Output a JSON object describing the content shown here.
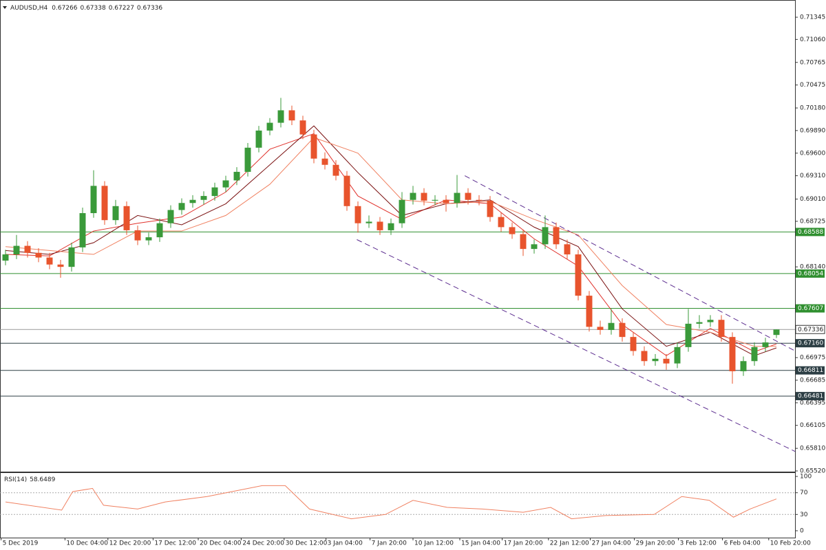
{
  "chart_data": [
    {
      "type": "candlestick",
      "title": "AUDUSD,H4",
      "xlim": [
        0,
        72
      ],
      "xticks": [
        {
          "value": 0.1,
          "label": "5 Dec 2019"
        },
        {
          "value": 5.9,
          "label": "10 Dec 04:00"
        },
        {
          "value": 9.8,
          "label": "12 Dec 20:00"
        },
        {
          "value": 13.9,
          "label": "17 Dec 12:00"
        },
        {
          "value": 18,
          "label": "20 Dec 04:00"
        },
        {
          "value": 21.9,
          "label": "24 Dec 20:00"
        },
        {
          "value": 25.8,
          "label": "30 Dec 12:00"
        },
        {
          "value": 29.6,
          "label": "3 Jan 04:00"
        },
        {
          "value": 33.6,
          "label": "7 Jan 20:00"
        },
        {
          "value": 37.5,
          "label": "10 Jan 12:00"
        },
        {
          "value": 41.75,
          "label": "15 Jan 04:00"
        },
        {
          "value": 45.6,
          "label": "17 Jan 20:00"
        },
        {
          "value": 49.8,
          "label": "22 Jan 12:00"
        },
        {
          "value": 53.6,
          "label": "27 Jan 04:00"
        },
        {
          "value": 57.6,
          "label": "29 Jan 20:00"
        },
        {
          "value": 61.6,
          "label": "3 Feb 12:00"
        },
        {
          "value": 65.6,
          "label": "6 Feb 04:00"
        },
        {
          "value": 69.8,
          "label": "10 Feb 20:00"
        }
      ],
      "ylim": [
        0.6552,
        0.71522
      ],
      "yticks": [
        0.71345,
        {
          "value": 0.7106,
          "label": "0.71060"
        },
        0.70765,
        0.70475,
        {
          "value": 0.7018,
          "label": "0.70180"
        },
        {
          "value": 0.6989,
          "label": "0.69890"
        },
        {
          "value": 0.696,
          "label": "0.69600"
        },
        {
          "value": 0.6931,
          "label": "0.69310"
        },
        {
          "value": 0.6901,
          "label": "0.69010"
        },
        0.68725,
        {
          "value": 0.6814,
          "label": "0.68140"
        },
        0.66975,
        0.66685,
        0.66395,
        0.66105,
        {
          "value": 0.6581,
          "label": "0.65810"
        },
        {
          "value": 0.6552,
          "label": "0.65520"
        }
      ],
      "grid": false,
      "up_color": "#3a9a3a",
      "down_color": "#e8542d",
      "open": [
        0.6822,
        0.683,
        0.6841,
        0.6832,
        0.6826,
        0.6817,
        0.6814,
        0.6839,
        0.6883,
        0.6918,
        0.6874,
        0.6892,
        0.6861,
        0.6848,
        0.6852,
        0.687,
        0.6887,
        0.6896,
        0.69,
        0.6905,
        0.6916,
        0.6925,
        0.6936,
        0.6967,
        0.6989,
        0.6999,
        0.7015,
        0.7002,
        0.6984,
        0.6953,
        0.6945,
        0.6931,
        0.6892,
        0.687,
        0.6872,
        0.6861,
        0.687,
        0.69,
        0.6909,
        0.6899,
        0.69,
        0.6896,
        0.6909,
        0.69,
        0.6899,
        0.6878,
        0.6865,
        0.6856,
        0.6837,
        0.6843,
        0.6865,
        0.6843,
        0.683,
        0.6777,
        0.6737,
        0.6733,
        0.6742,
        0.6724,
        0.6706,
        0.6693,
        0.6696,
        0.669,
        0.6711,
        0.6741,
        0.6743,
        0.6746,
        0.6724,
        0.668,
        0.6693,
        0.6711,
        0.67266
      ],
      "high": [
        0.6836,
        0.6855,
        0.6847,
        0.6838,
        0.6832,
        0.6823,
        0.6845,
        0.689,
        0.6938,
        0.6924,
        0.69,
        0.6898,
        0.6867,
        0.6858,
        0.6876,
        0.6893,
        0.6902,
        0.6906,
        0.6911,
        0.6922,
        0.6931,
        0.6942,
        0.6973,
        0.6995,
        0.7005,
        0.7031,
        0.7021,
        0.7008,
        0.699,
        0.6961,
        0.6951,
        0.6937,
        0.6898,
        0.688,
        0.6878,
        0.6876,
        0.691,
        0.6918,
        0.6915,
        0.6906,
        0.6906,
        0.6932,
        0.6915,
        0.6906,
        0.6905,
        0.6884,
        0.6871,
        0.6862,
        0.6849,
        0.688,
        0.6871,
        0.6849,
        0.6836,
        0.6783,
        0.6745,
        0.676,
        0.6748,
        0.673,
        0.6712,
        0.6702,
        0.6702,
        0.6717,
        0.676,
        0.6752,
        0.6752,
        0.6752,
        0.673,
        0.6699,
        0.6717,
        0.6723,
        0.67338
      ],
      "low": [
        0.6816,
        0.6824,
        0.6826,
        0.682,
        0.6811,
        0.68,
        0.6808,
        0.6833,
        0.6877,
        0.6868,
        0.6868,
        0.6855,
        0.6842,
        0.6842,
        0.6846,
        0.6864,
        0.6881,
        0.689,
        0.6894,
        0.6899,
        0.691,
        0.6919,
        0.693,
        0.6961,
        0.6983,
        0.6993,
        0.6996,
        0.6978,
        0.6947,
        0.6939,
        0.6925,
        0.6886,
        0.6858,
        0.6864,
        0.6855,
        0.6855,
        0.6864,
        0.6894,
        0.6893,
        0.6893,
        0.6885,
        0.689,
        0.6894,
        0.6893,
        0.6872,
        0.6859,
        0.685,
        0.6828,
        0.6831,
        0.6837,
        0.6837,
        0.6824,
        0.6771,
        0.6731,
        0.6727,
        0.6727,
        0.6718,
        0.67,
        0.6687,
        0.6687,
        0.6682,
        0.6684,
        0.6705,
        0.6735,
        0.6737,
        0.6718,
        0.6664,
        0.6674,
        0.6687,
        0.6705,
        0.67227
      ],
      "close": [
        0.683,
        0.6841,
        0.6832,
        0.6826,
        0.6817,
        0.6814,
        0.6839,
        0.6883,
        0.6918,
        0.6874,
        0.6892,
        0.6861,
        0.6848,
        0.6852,
        0.687,
        0.6887,
        0.6896,
        0.69,
        0.6905,
        0.6916,
        0.6925,
        0.6936,
        0.6967,
        0.6989,
        0.6999,
        0.7015,
        0.7002,
        0.6984,
        0.6953,
        0.6945,
        0.6931,
        0.6892,
        0.687,
        0.6872,
        0.6861,
        0.687,
        0.69,
        0.6909,
        0.6899,
        0.69,
        0.6896,
        0.6909,
        0.69,
        0.6899,
        0.6878,
        0.6865,
        0.6856,
        0.6837,
        0.6843,
        0.6865,
        0.6843,
        0.683,
        0.6777,
        0.6737,
        0.6733,
        0.6742,
        0.6724,
        0.6706,
        0.6693,
        0.6696,
        0.669,
        0.6711,
        0.6741,
        0.6743,
        0.6746,
        0.6724,
        0.668,
        0.6693,
        0.6711,
        0.6717,
        0.67336
      ],
      "series": [
        {
          "color": "#e0302a",
          "x": [
            0.5,
            4.5,
            8.5,
            12.5,
            16.5,
            20.5,
            24.5,
            28.5,
            32.5,
            36.5,
            40.5,
            44.5,
            48.5,
            52.5,
            56.5,
            60.5,
            64.5,
            68.5,
            70.5
          ],
          "values": [
            0.683,
            0.6828,
            0.686,
            0.687,
            0.6878,
            0.691,
            0.6965,
            0.6985,
            0.6905,
            0.6875,
            0.69,
            0.6895,
            0.685,
            0.6815,
            0.674,
            0.67,
            0.6735,
            0.6705,
            0.6715
          ]
        },
        {
          "color": "#7a1010",
          "x": [
            0.5,
            4.5,
            8.5,
            12.5,
            16.5,
            20.5,
            24.5,
            28.5,
            32.5,
            36.5,
            40.5,
            44.5,
            48.5,
            52.5,
            56.5,
            60.5,
            64.5,
            68.5,
            70.5
          ],
          "values": [
            0.6835,
            0.683,
            0.6845,
            0.688,
            0.6868,
            0.6895,
            0.6945,
            0.6995,
            0.6935,
            0.688,
            0.6895,
            0.69,
            0.6865,
            0.684,
            0.676,
            0.6712,
            0.673,
            0.67,
            0.671
          ]
        },
        {
          "color": "#f08060",
          "x": [
            0.5,
            4.5,
            8.5,
            12.5,
            16.5,
            20.5,
            24.5,
            28.5,
            32.5,
            36.5,
            40.5,
            44.5,
            48.5,
            52.5,
            56.5,
            60.5,
            64.5,
            68.5,
            70.5
          ],
          "values": [
            0.684,
            0.6835,
            0.683,
            0.686,
            0.686,
            0.688,
            0.692,
            0.698,
            0.696,
            0.69,
            0.6895,
            0.6898,
            0.6875,
            0.6855,
            0.679,
            0.674,
            0.673,
            0.6712,
            0.6712
          ]
        }
      ],
      "trendline_color": "#5b2c8f",
      "trendlines": [
        {
          "x": [
            32.4,
            72.2
          ],
          "y": [
            0.6849,
            0.6577
          ]
        },
        {
          "x": [
            42.2,
            72.2
          ],
          "y": [
            0.6931,
            0.6706
          ]
        }
      ],
      "levels": {
        "values": [
          0.68588,
          0.68054,
          0.67607,
          0.6716,
          0.66811,
          0.66481
        ],
        "value_labels": [
          "0.68588",
          "0.68054",
          "0.67607",
          "0.67160",
          "0.66811",
          "0.66481"
        ],
        "colors": [
          "#2f8f2f",
          "#2f8f2f",
          "#2f8f2f",
          "#2c3e44",
          "#2c3e44",
          "#2c3e44"
        ]
      }
    },
    {
      "type": "line",
      "title": "RSI(14)",
      "color": "#f08060",
      "ylim": [
        0,
        100
      ],
      "yticks": [
        100,
        70,
        30,
        0
      ],
      "x": [
        0.5,
        5.6,
        6.6,
        8.4,
        9.4,
        12.5,
        15,
        18.8,
        23.8,
        25.9,
        28.1,
        31.9,
        35,
        37.5,
        40.6,
        43.8,
        47.5,
        50,
        51.9,
        55,
        59.4,
        61.9,
        64.4,
        66.6,
        68.1,
        70.5
      ],
      "values": [
        53,
        38,
        72,
        78,
        47,
        40,
        53,
        63,
        83,
        83,
        40,
        22,
        30,
        56,
        43,
        40,
        34,
        43,
        22,
        28,
        30,
        63,
        56,
        25,
        40,
        58.6489
      ]
    }
  ]
}
